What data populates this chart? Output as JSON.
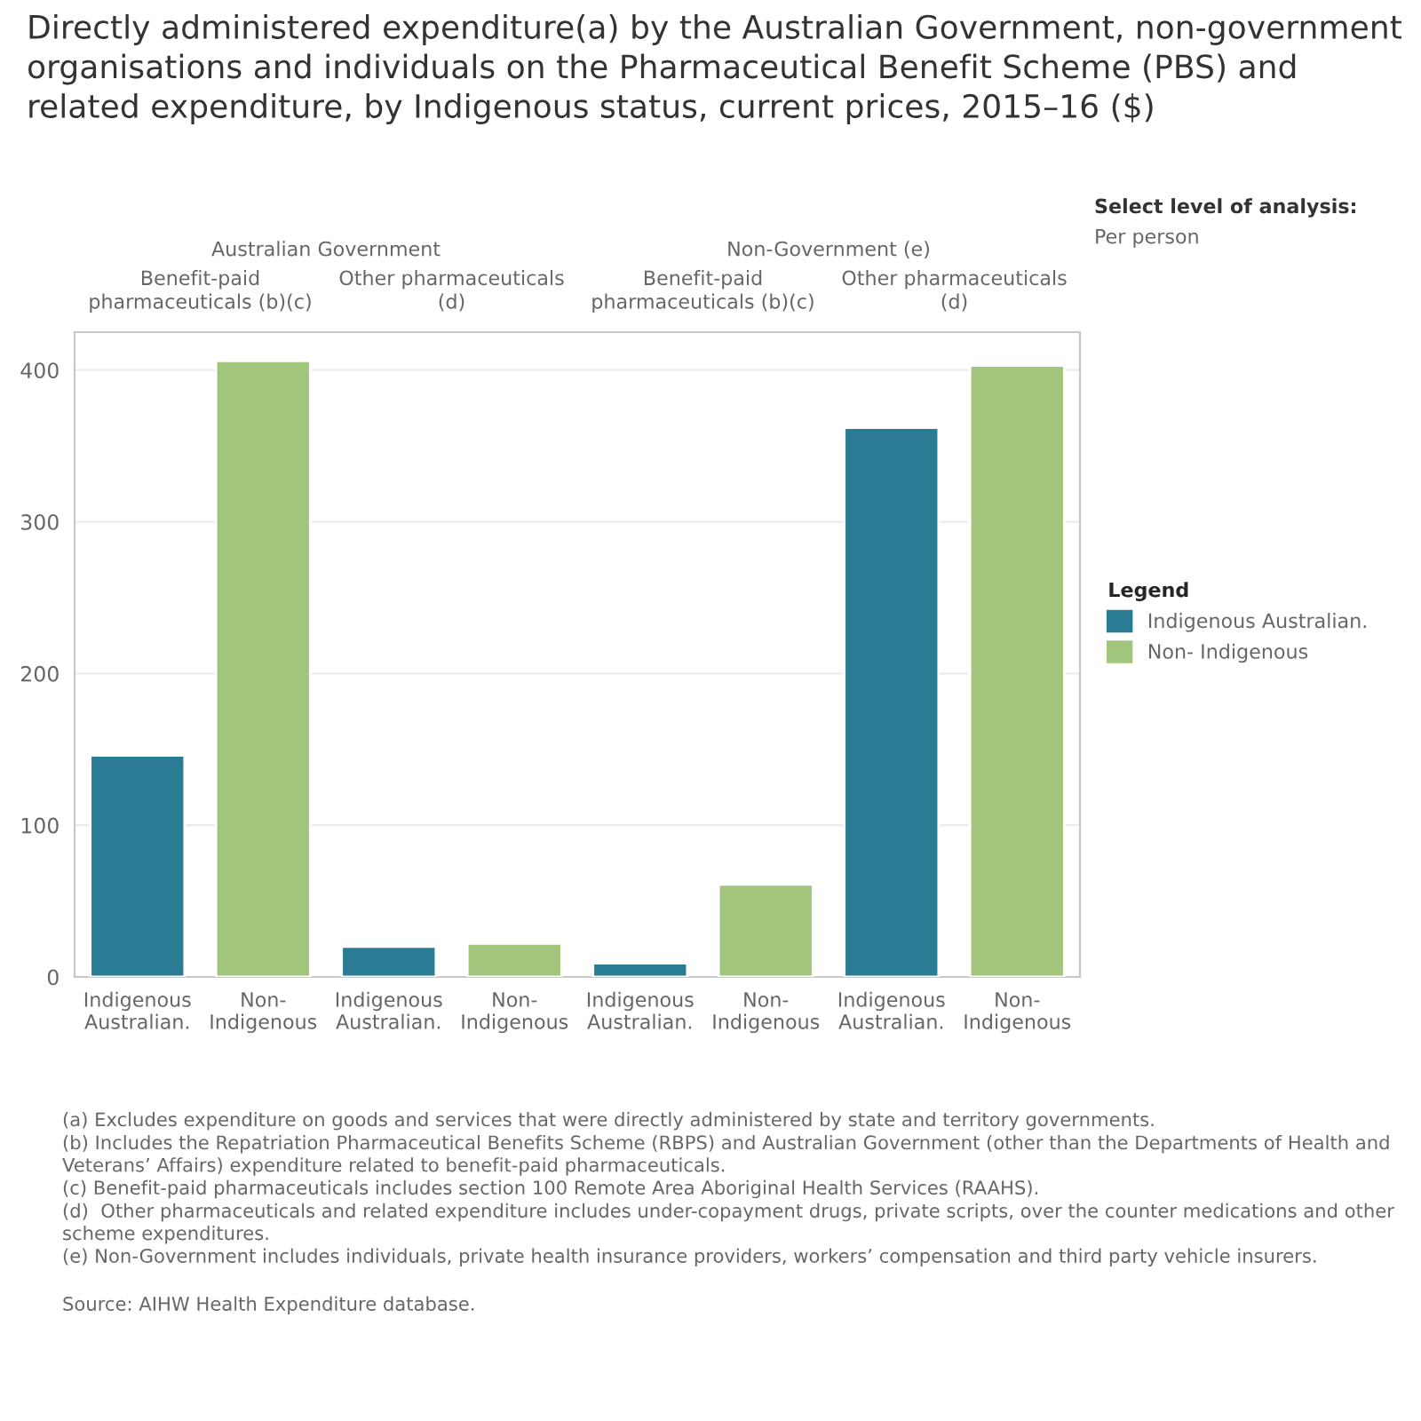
{
  "chart_data": {
    "type": "bar",
    "title": "Directly administered expenditure(a) by the Australian Government, non-government organisations and individuals on the Pharmaceutical Benefit Scheme (PBS) and related expenditure, by Indigenous status, current prices, 2015–16 ($)",
    "categories": [
      "Indigenous Australian.",
      "Non- Indigenous",
      "Indigenous Australian.",
      "Non- Indigenous",
      "Indigenous Australian.",
      "Non- Indigenous",
      "Indigenous Australian.",
      "Non- Indigenous"
    ],
    "series": [
      {
        "name": "Indigenous Australian.",
        "color": "#2a7b94",
        "values": [
          146,
          null,
          20,
          null,
          9,
          null,
          362,
          null
        ]
      },
      {
        "name": "Non- Indigenous",
        "color": "#a1c67b",
        "values": [
          null,
          406,
          null,
          22,
          null,
          61,
          null,
          403
        ]
      }
    ],
    "ylim": [
      0,
      425
    ],
    "yticks": [
      0,
      100,
      200,
      300,
      400
    ],
    "grid": "y",
    "legend": "right",
    "legend_title": "Legend",
    "annotations": [
      "Australian Government",
      "Non-Government (e)",
      "Benefit-paid pharmaceuticals (b)(c)",
      "Other pharmaceuticals (d)",
      "Benefit-paid pharmaceuticals (b)(c)",
      "Other pharmaceuticals (d)",
      "Select level of analysis:",
      "Per person",
      "(a) Excludes expenditure on goods and services that were directly administered by state and territory governments.",
      "(b) Includes the Repatriation Pharmaceutical Benefits Scheme (RBPS) and Australian Government (other than the Departments of Health and Veterans’ Affairs) expenditure related to benefit-paid pharmaceuticals.",
      "(c) Benefit-paid pharmaceuticals includes section 100 Remote Area Aboriginal Health Services (RAAHS).",
      "(d)  Other pharmaceuticals and related expenditure includes under-copayment drugs, private scripts, over the counter medications and other scheme expenditures.",
      "(e) Non-Government includes individuals, private health insurance providers, workers’ compensation and third party vehicle insurers.",
      "Source: AIHW Health Expenditure database."
    ]
  }
}
